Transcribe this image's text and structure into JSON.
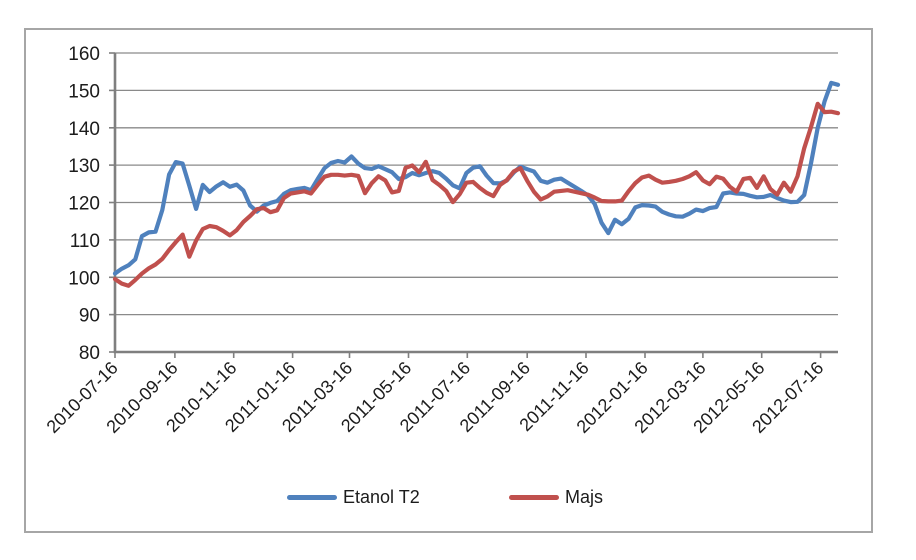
{
  "chart_data": {
    "type": "line",
    "title": "",
    "xlabel": "",
    "ylabel": "",
    "ylim": [
      80,
      160
    ],
    "y_ticks": [
      80,
      90,
      100,
      110,
      120,
      130,
      140,
      150,
      160
    ],
    "x_tick_labels": [
      "2010-07-16",
      "2010-09-16",
      "2010-11-16",
      "2011-01-16",
      "2011-03-16",
      "2011-05-16",
      "2011-07-16",
      "2011-09-16",
      "2011-11-16",
      "2012-01-16",
      "2012-03-16",
      "2012-05-16",
      "2012-07-16"
    ],
    "x_tick_positions_weeks": [
      0,
      8.86,
      17.57,
      26.29,
      34.71,
      43.43,
      52.14,
      61,
      69.71,
      78.43,
      87,
      95.71,
      104.43
    ],
    "x_total_weeks": 107,
    "x_unit": "weeks since 2010-07-16",
    "grid": true,
    "legend_position": "bottom",
    "colors": {
      "grid": "#8A8A8A",
      "axis": "#7F7F7F",
      "text": "#1C1C1C",
      "frame_border": "#A6A6A6",
      "background": "#FFFFFF"
    },
    "series": [
      {
        "name": "Etanol T2",
        "color": "#4F81BD",
        "values": [
          101,
          102.3,
          103.2,
          104.8,
          111,
          112,
          112.2,
          118,
          127.5,
          130.8,
          130.4,
          124.5,
          118.3,
          124.7,
          122.8,
          124.3,
          125.4,
          124.2,
          124.8,
          123.2,
          119.2,
          117.6,
          119.2,
          119.9,
          120.4,
          122.3,
          123.3,
          123.6,
          123.9,
          123.3,
          126.3,
          129.2,
          130.6,
          131.1,
          130.7,
          132.3,
          130.4,
          129.2,
          129,
          129.7,
          128.9,
          128.1,
          126.3,
          126.8,
          127.9,
          127.3,
          127.9,
          128.4,
          127.9,
          126.4,
          124.6,
          123.8,
          127.9,
          129.3,
          129.7,
          127.2,
          125.2,
          125.1,
          125.9,
          128,
          129.6,
          128.9,
          128.3,
          125.8,
          125.3,
          126.1,
          126.4,
          125.3,
          124.2,
          123.1,
          121.9,
          119.6,
          114.6,
          111.8,
          115.4,
          114.2,
          115.6,
          118.7,
          119.3,
          119.2,
          118.9,
          117.5,
          116.8,
          116.3,
          116.2,
          117,
          118.1,
          117.7,
          118.5,
          118.8,
          122.4,
          122.7,
          122.4,
          122.3,
          121.8,
          121.4,
          121.5,
          122,
          121.2,
          120.5,
          120.1,
          120.2,
          122,
          130.5,
          140,
          147,
          152,
          151.5
        ]
      },
      {
        "name": "Majs",
        "color": "#C0504D",
        "values": [
          99.5,
          98.3,
          97.7,
          99.3,
          101,
          102.4,
          103.4,
          104.9,
          107.3,
          109.4,
          111.4,
          105.5,
          109.8,
          112.9,
          113.7,
          113.4,
          112.4,
          111.2,
          112.6,
          114.8,
          116.4,
          118.2,
          118.5,
          117.4,
          117.9,
          121.2,
          122.4,
          122.7,
          123,
          122.4,
          124.7,
          126.9,
          127.4,
          127.4,
          127.2,
          127.4,
          127.1,
          122.5,
          125.2,
          127,
          125.9,
          122.7,
          123.1,
          129.3,
          129.9,
          128.1,
          130.9,
          126,
          124.7,
          123.1,
          120.1,
          122.2,
          125.3,
          125.5,
          123.9,
          122.6,
          121.7,
          124.7,
          126,
          128.3,
          129.2,
          125.8,
          122.9,
          120.8,
          121.6,
          122.9,
          123.1,
          123.3,
          122.9,
          122.5,
          122.1,
          121.3,
          120.4,
          120.3,
          120.3,
          120.5,
          123,
          125.2,
          126.7,
          127.2,
          126.1,
          125.3,
          125.5,
          125.8,
          126.3,
          127,
          128.1,
          125.9,
          124.9,
          126.9,
          126.4,
          124.2,
          122.9,
          126.3,
          126.6,
          123.9,
          127,
          123.6,
          122.1,
          125.3,
          122.9,
          127,
          134.5,
          140.2,
          146.4,
          144.2,
          144.3,
          143.9
        ]
      }
    ]
  },
  "legend": {
    "items": [
      {
        "label": "Etanol T2"
      },
      {
        "label": "Majs"
      }
    ]
  }
}
